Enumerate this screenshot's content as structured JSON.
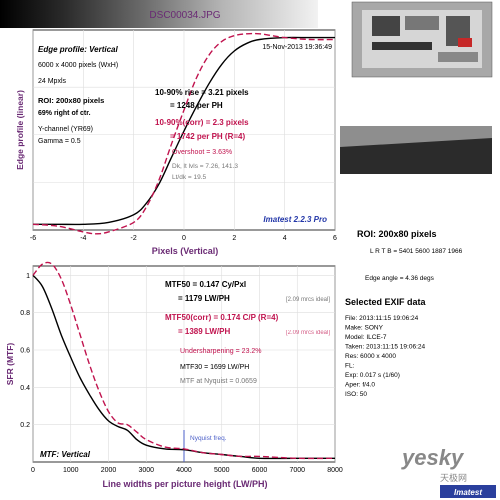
{
  "header": {
    "filename": "DSC00034.JPG"
  },
  "edge_panel": {
    "title": "Edge profile: Vertical",
    "timestamp": "15-Nov-2013 19:36:49",
    "info1": "6000 x 4000 pixels (WxH)",
    "info2": "24 Mpxls",
    "roi": "ROI: 200x80 pixels",
    "roi_pos": "69% right of ctr.",
    "channel": "Y-channel  (YR69)",
    "gamma": "Gamma = 0.5",
    "rise": "10-90% rise = 3.21 pixels",
    "rise_ph": "= 1248 per PH",
    "rise_corr": "10-90%(corr) = 2.3 pixels",
    "rise_corr_ph": "= 1742 per PH  (R=4)",
    "overshoot": "Overshoot = 3.63%",
    "dk_lt": "Dk, lt lvls = 7.26, 141.3",
    "lt_dk": "Lt/dk = 19.5",
    "brand": "Imatest 2.2.3 Pro"
  },
  "mtf_panel": {
    "mtf50": "MTF50 = 0.147 Cy/Pxl",
    "mtf50_lw": "= 1179 LW/PH",
    "ideal1": "[2.09 mrcs ideal]",
    "mtf50c": "MTF50(corr) = 0.174 C/P  (R=4)",
    "mtf50c_lw": "= 1389 LW/PH",
    "ideal2": "[2.09 mrcs ideal]",
    "undersharp": "Undersharpening = 23.2%",
    "mtf30": "MTF30 = 1699 LW/PH",
    "nyq_mtf": "MTF at Nyquist = 0.0659",
    "nyquist_label": "Nyquist freq.",
    "title": "MTF: Vertical"
  },
  "side": {
    "roi_title": "ROI: 200x80 pixels",
    "lrtb": "L R T B = 5401 5600  1887 1966",
    "edge_angle": "Edge angle = 4.36 degs",
    "exif_title": "Selected EXIF data",
    "exif": [
      "File:  2013:11:15 19:06:24",
      "Make:  SONY",
      "Model:  ILCE-7",
      "Taken:  2013:11:15 19:06:24",
      "Res:   6000 x 4000",
      "FL:",
      "Exp:   0.017 s  (1/60)",
      "Aper:  f/4.0",
      "ISO:   50"
    ]
  },
  "watermark": {
    "site": "yesky",
    "cn": "天极网",
    "brand": "Imatest"
  },
  "colors": {
    "measured": "#000000",
    "corrected": "#c0134e",
    "nyquist": "#4b5fc8",
    "accent": "#6a2a74"
  },
  "chart_data": [
    {
      "type": "line",
      "title": "Edge profile: Vertical",
      "xlabel": "Pixels (Vertical)",
      "ylabel": "Edge profile (linear)",
      "xlim": [
        -6,
        6
      ],
      "ylim": [
        0,
        1.05
      ],
      "xticks": [
        -6,
        -4,
        -2,
        0,
        2,
        4,
        6
      ],
      "grid": true,
      "series": [
        {
          "x": [
            -6,
            -5,
            -4,
            -3,
            -2,
            -1.5,
            -1,
            -0.5,
            0,
            0.5,
            1,
            1.5,
            2,
            2.5,
            3,
            4,
            5,
            6
          ],
          "y": [
            0.03,
            0.03,
            0.03,
            0.04,
            0.08,
            0.14,
            0.24,
            0.38,
            0.52,
            0.65,
            0.77,
            0.87,
            0.94,
            0.98,
            1.0,
            1.01,
            1.01,
            1.01
          ]
        },
        {
          "x": [
            -6,
            -5,
            -4,
            -3.5,
            -3,
            -2,
            -1.5,
            -1,
            -0.5,
            0,
            0.5,
            1,
            1.5,
            2,
            2.5,
            3,
            3.5,
            4,
            5,
            6
          ],
          "y": [
            0.03,
            0.02,
            -0.01,
            -0.02,
            -0.01,
            0.04,
            0.12,
            0.26,
            0.45,
            0.63,
            0.8,
            0.92,
            0.99,
            1.02,
            1.03,
            1.03,
            1.02,
            1.01,
            1.0,
            1.0
          ]
        }
      ]
    },
    {
      "type": "line",
      "title": "MTF: Vertical",
      "xlabel": "Line widths per picture height (LW/PH)",
      "ylabel": "SFR (MTF)",
      "xlim": [
        0,
        8000
      ],
      "ylim": [
        0,
        1.05
      ],
      "xticks": [
        0,
        1000,
        2000,
        3000,
        4000,
        5000,
        6000,
        7000,
        8000
      ],
      "yticks": [
        0.2,
        0.4,
        0.6,
        0.8,
        1
      ],
      "grid": true,
      "nyquist_x": 4000,
      "series": [
        {
          "x": [
            0,
            250,
            500,
            750,
            1000,
            1250,
            1500,
            1750,
            2000,
            2250,
            2500,
            2750,
            3000,
            3500,
            4000,
            4500,
            5000,
            5500,
            6000,
            7000,
            8000
          ],
          "y": [
            1.0,
            0.94,
            0.82,
            0.68,
            0.56,
            0.45,
            0.36,
            0.28,
            0.22,
            0.19,
            0.17,
            0.12,
            0.09,
            0.07,
            0.066,
            0.05,
            0.04,
            0.03,
            0.02,
            0.02,
            0.02
          ]
        },
        {
          "x": [
            0,
            250,
            500,
            750,
            1000,
            1250,
            1500,
            1750,
            2000,
            2250,
            2500,
            2750,
            3000,
            3500,
            4000,
            4500,
            5000,
            5500,
            6000,
            7000,
            8000
          ],
          "y": [
            1.0,
            1.06,
            1.06,
            0.98,
            0.84,
            0.68,
            0.52,
            0.38,
            0.27,
            0.21,
            0.2,
            0.16,
            0.12,
            0.08,
            0.07,
            0.05,
            0.04,
            0.03,
            0.03,
            0.02,
            0.02
          ]
        }
      ]
    }
  ]
}
